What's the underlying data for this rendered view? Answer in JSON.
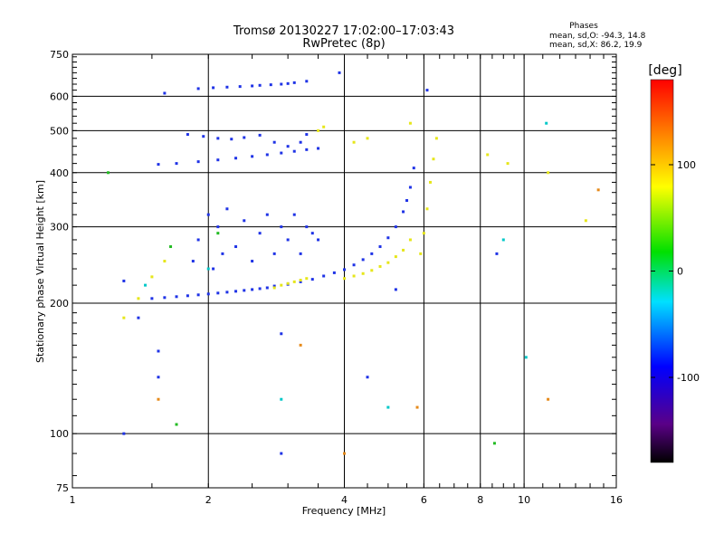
{
  "header": {
    "title_line1": "Tromsø 20130227 17:02:00–17:03:43",
    "title_line2": "RwPretec (8p)",
    "info_title": "Phases",
    "info_line1": "mean, sd,O: -94.3, 14.8",
    "info_line2": "mean, sd,X:  86.2, 19.9"
  },
  "chart_data": {
    "type": "scatter",
    "xlabel": "Frequency [MHz]",
    "ylabel": "Stationary phase Virtual Height [km]",
    "xscale": "log",
    "yscale": "log",
    "xlim": [
      1,
      16
    ],
    "ylim": [
      75,
      750
    ],
    "x_ticks": [
      1,
      2,
      4,
      6,
      8,
      10,
      16
    ],
    "x_tick_labels": [
      "1",
      "2",
      "4",
      "6",
      "8",
      "10",
      "16"
    ],
    "y_ticks": [
      75,
      100,
      200,
      300,
      400,
      500,
      600,
      750
    ],
    "y_tick_labels": [
      "75",
      "100",
      "200",
      "300",
      "400",
      "500",
      "600",
      "750"
    ],
    "grid": true,
    "colorbar": {
      "label": "[deg]",
      "range": [
        -180,
        180
      ],
      "ticks": [
        100,
        0,
        -100
      ],
      "tick_labels": [
        "100",
        "0",
        "-100"
      ]
    },
    "series": [
      {
        "mode": "O",
        "color": "#1f33e6",
        "points": [
          [
            1.5,
            205
          ],
          [
            1.6,
            206
          ],
          [
            1.7,
            207
          ],
          [
            1.8,
            208
          ],
          [
            1.9,
            209
          ],
          [
            2.0,
            210
          ],
          [
            2.1,
            211
          ],
          [
            2.2,
            212
          ],
          [
            2.3,
            213
          ],
          [
            2.4,
            214
          ],
          [
            2.5,
            215
          ],
          [
            2.6,
            216
          ],
          [
            2.7,
            217
          ],
          [
            2.8,
            219
          ],
          [
            3.0,
            221
          ],
          [
            3.2,
            224
          ],
          [
            3.4,
            227
          ],
          [
            3.6,
            231
          ],
          [
            3.8,
            235
          ],
          [
            4.0,
            239
          ],
          [
            4.2,
            245
          ],
          [
            4.4,
            252
          ],
          [
            4.6,
            260
          ],
          [
            4.8,
            270
          ],
          [
            5.0,
            283
          ],
          [
            5.2,
            300
          ],
          [
            5.4,
            325
          ],
          [
            5.5,
            345
          ],
          [
            5.6,
            370
          ],
          [
            5.7,
            410
          ],
          [
            1.55,
            418
          ],
          [
            1.7,
            420
          ],
          [
            1.9,
            424
          ],
          [
            2.1,
            428
          ],
          [
            2.3,
            432
          ],
          [
            2.5,
            436
          ],
          [
            2.7,
            440
          ],
          [
            2.9,
            444
          ],
          [
            3.1,
            448
          ],
          [
            3.3,
            452
          ],
          [
            3.5,
            455
          ],
          [
            1.8,
            490
          ],
          [
            1.95,
            485
          ],
          [
            2.1,
            480
          ],
          [
            2.25,
            478
          ],
          [
            2.4,
            482
          ],
          [
            2.6,
            488
          ],
          [
            2.8,
            470
          ],
          [
            3.0,
            460
          ],
          [
            3.2,
            470
          ],
          [
            3.3,
            490
          ],
          [
            1.9,
            625
          ],
          [
            2.05,
            628
          ],
          [
            2.2,
            630
          ],
          [
            2.35,
            632
          ],
          [
            2.5,
            634
          ],
          [
            2.6,
            636
          ],
          [
            2.75,
            638
          ],
          [
            2.9,
            640
          ],
          [
            3.0,
            642
          ],
          [
            3.1,
            645
          ],
          [
            3.3,
            650
          ],
          [
            1.85,
            250
          ],
          [
            1.9,
            280
          ],
          [
            2.0,
            320
          ],
          [
            2.05,
            240
          ],
          [
            2.1,
            300
          ],
          [
            2.15,
            260
          ],
          [
            2.2,
            330
          ],
          [
            2.3,
            270
          ],
          [
            2.4,
            310
          ],
          [
            2.5,
            250
          ],
          [
            2.6,
            290
          ],
          [
            2.7,
            320
          ],
          [
            2.8,
            260
          ],
          [
            2.9,
            300
          ],
          [
            3.0,
            280
          ],
          [
            3.1,
            320
          ],
          [
            3.2,
            260
          ],
          [
            3.3,
            300
          ],
          [
            3.4,
            290
          ],
          [
            3.5,
            280
          ],
          [
            1.3,
            225
          ],
          [
            1.4,
            185
          ],
          [
            1.55,
            155
          ],
          [
            1.55,
            135
          ],
          [
            2.9,
            170
          ],
          [
            2.9,
            90
          ],
          [
            4.5,
            135
          ],
          [
            5.2,
            215
          ],
          [
            1.3,
            100
          ],
          [
            8.7,
            260
          ],
          [
            1.6,
            610
          ],
          [
            6.1,
            620
          ],
          [
            3.9,
            680
          ]
        ]
      },
      {
        "mode": "X",
        "color": "#e6e61a",
        "points": [
          [
            2.8,
            217
          ],
          [
            2.9,
            220
          ],
          [
            3.0,
            222
          ],
          [
            3.1,
            224
          ],
          [
            3.2,
            226
          ],
          [
            3.3,
            228
          ],
          [
            4.0,
            228
          ],
          [
            4.2,
            231
          ],
          [
            4.4,
            234
          ],
          [
            4.6,
            238
          ],
          [
            4.8,
            243
          ],
          [
            5.0,
            248
          ],
          [
            5.2,
            256
          ],
          [
            5.4,
            265
          ],
          [
            5.6,
            280
          ],
          [
            5.9,
            260
          ],
          [
            6.0,
            290
          ],
          [
            6.1,
            330
          ],
          [
            6.2,
            380
          ],
          [
            6.3,
            430
          ],
          [
            6.4,
            480
          ],
          [
            3.5,
            500
          ],
          [
            3.6,
            510
          ],
          [
            4.2,
            470
          ],
          [
            4.5,
            480
          ],
          [
            5.6,
            520
          ],
          [
            1.3,
            185
          ],
          [
            1.4,
            205
          ],
          [
            1.5,
            230
          ],
          [
            1.6,
            250
          ],
          [
            8.3,
            440
          ],
          [
            9.2,
            420
          ],
          [
            11.3,
            400
          ],
          [
            13.7,
            310
          ]
        ]
      },
      {
        "mode": "other",
        "color": "#00c8c8",
        "points": [
          [
            1.45,
            220
          ],
          [
            2.9,
            120
          ],
          [
            5.0,
            115
          ],
          [
            9.0,
            280
          ],
          [
            10.1,
            150
          ],
          [
            11.2,
            520
          ],
          [
            2.0,
            240
          ]
        ]
      },
      {
        "mode": "other",
        "color": "#e68a1a",
        "points": [
          [
            1.55,
            120
          ],
          [
            3.2,
            160
          ],
          [
            4.0,
            90
          ],
          [
            5.8,
            115
          ],
          [
            11.3,
            120
          ],
          [
            14.6,
            365
          ]
        ]
      },
      {
        "mode": "other",
        "color": "#22bb22",
        "points": [
          [
            1.7,
            105
          ],
          [
            1.2,
            400
          ],
          [
            8.6,
            95
          ],
          [
            1.65,
            270
          ],
          [
            2.1,
            290
          ]
        ]
      }
    ]
  }
}
